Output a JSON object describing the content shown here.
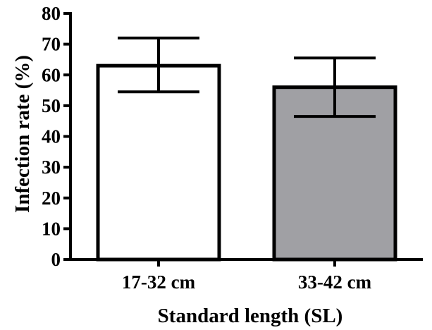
{
  "chart_data": {
    "type": "bar",
    "xlabel": "Standard length (SL)",
    "ylabel": "Infection rate (%)",
    "ylim": [
      0,
      80
    ],
    "yticks": [
      "0",
      "10",
      "20",
      "30",
      "40",
      "50",
      "60",
      "70",
      "80"
    ],
    "categories": [
      "17-32 cm",
      "33-42 cm"
    ],
    "values": [
      63,
      56
    ],
    "error_low": [
      54.5,
      46.5
    ],
    "error_high": [
      72,
      65.5
    ],
    "bar_colors": [
      "#ffffff",
      "#a0a0a4"
    ],
    "grid": false,
    "legend": "none"
  }
}
